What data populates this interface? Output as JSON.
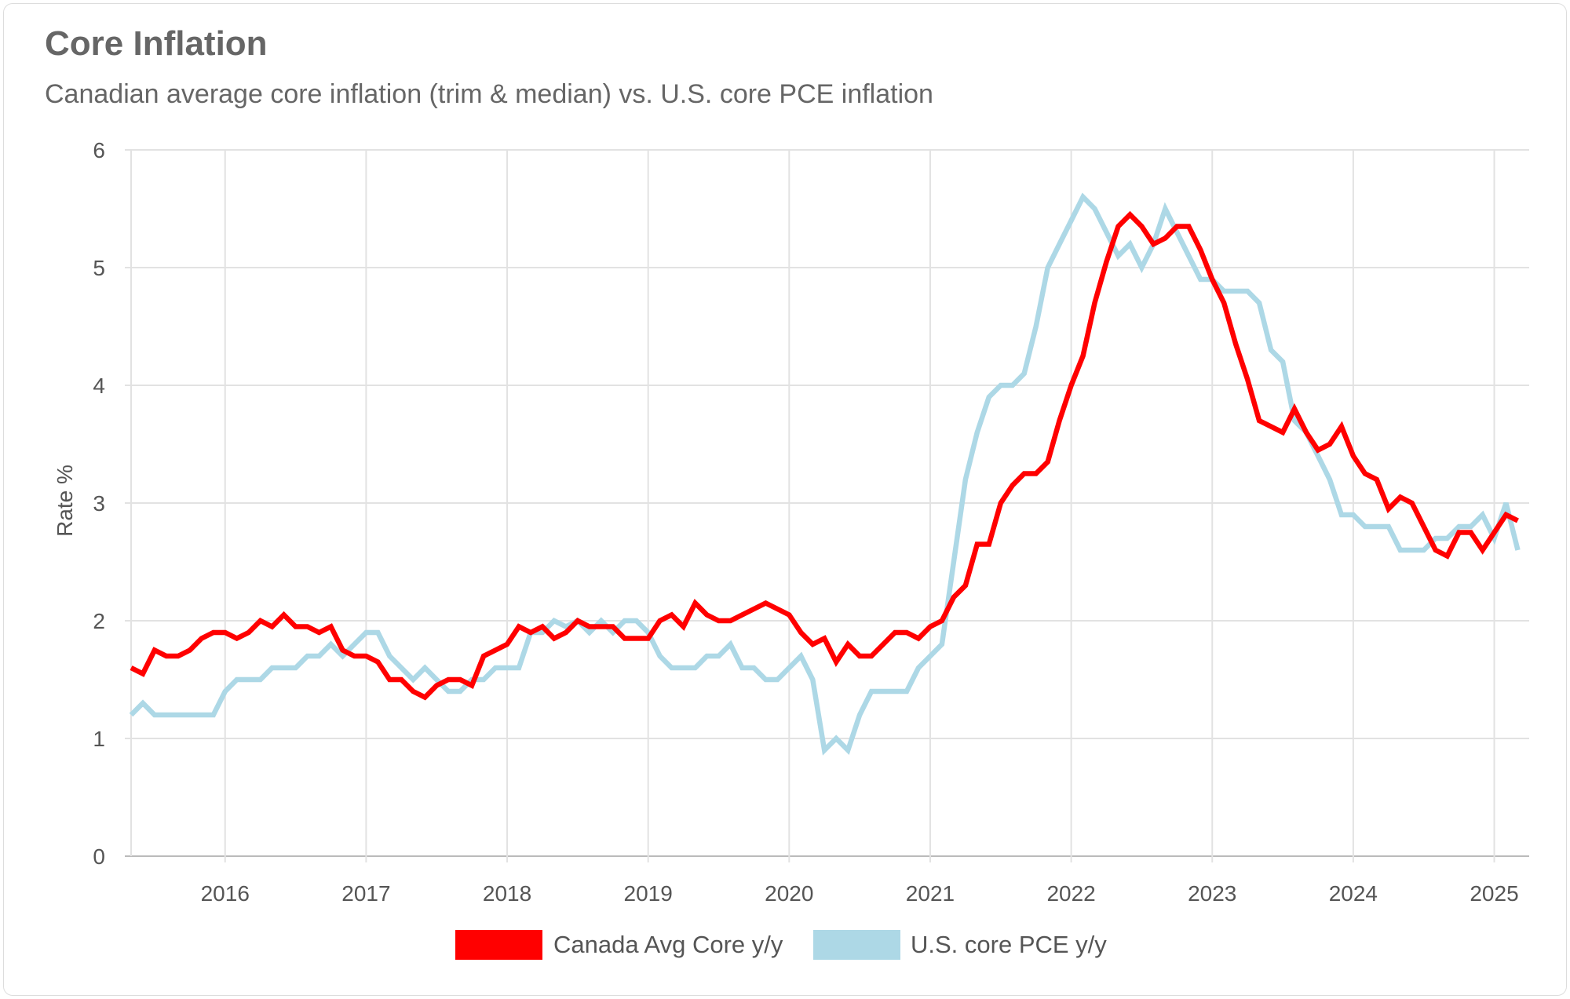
{
  "header": {
    "title": "Core Inflation",
    "subtitle": "Canadian average core inflation (trim & median) vs. U.S. core PCE inflation"
  },
  "chart_data": {
    "type": "line",
    "title": "Core Inflation",
    "subtitle": "Canadian average core inflation (trim & median) vs. U.S. core PCE inflation",
    "xlabel": "",
    "ylabel": "Rate %",
    "x_start": "2015-05",
    "x_end": "2025-03",
    "x_frequency": "monthly",
    "x_tick_labels": [
      "2016",
      "2017",
      "2018",
      "2019",
      "2020",
      "2021",
      "2022",
      "2023",
      "2024",
      "2025"
    ],
    "y_tick_labels": [
      "0",
      "1",
      "2",
      "3",
      "4",
      "5",
      "6"
    ],
    "ylim": [
      0,
      6
    ],
    "grid": true,
    "legend_position": "bottom",
    "series": [
      {
        "name": "Canada Avg Core y/y",
        "color": "#ff0000",
        "values": [
          1.6,
          1.55,
          1.75,
          1.7,
          1.7,
          1.75,
          1.85,
          1.9,
          1.9,
          1.85,
          1.9,
          2.0,
          1.95,
          2.05,
          1.95,
          1.95,
          1.9,
          1.95,
          1.75,
          1.7,
          1.7,
          1.65,
          1.5,
          1.5,
          1.4,
          1.35,
          1.45,
          1.5,
          1.5,
          1.45,
          1.7,
          1.75,
          1.8,
          1.95,
          1.9,
          1.95,
          1.85,
          1.9,
          2.0,
          1.95,
          1.95,
          1.95,
          1.85,
          1.85,
          1.85,
          2.0,
          2.05,
          1.95,
          2.15,
          2.05,
          2.0,
          2.0,
          2.05,
          2.1,
          2.15,
          2.1,
          2.05,
          1.9,
          1.8,
          1.85,
          1.65,
          1.8,
          1.7,
          1.7,
          1.8,
          1.9,
          1.9,
          1.85,
          1.95,
          2.0,
          2.2,
          2.3,
          2.65,
          2.65,
          3.0,
          3.15,
          3.25,
          3.25,
          3.35,
          3.7,
          4.0,
          4.25,
          4.7,
          5.05,
          5.35,
          5.45,
          5.35,
          5.2,
          5.25,
          5.35,
          5.35,
          5.15,
          4.9,
          4.7,
          4.35,
          4.05,
          3.7,
          3.65,
          3.6,
          3.8,
          3.6,
          3.45,
          3.5,
          3.65,
          3.4,
          3.25,
          3.2,
          2.95,
          3.05,
          3.0,
          2.8,
          2.6,
          2.55,
          2.75,
          2.75,
          2.6,
          2.75,
          2.9,
          2.85
        ]
      },
      {
        "name": "U.S. core PCE y/y",
        "color": "#add8e6",
        "values": [
          1.2,
          1.3,
          1.2,
          1.2,
          1.2,
          1.2,
          1.2,
          1.2,
          1.4,
          1.5,
          1.5,
          1.5,
          1.6,
          1.6,
          1.6,
          1.7,
          1.7,
          1.8,
          1.7,
          1.8,
          1.9,
          1.9,
          1.7,
          1.6,
          1.5,
          1.6,
          1.5,
          1.4,
          1.4,
          1.5,
          1.5,
          1.6,
          1.6,
          1.6,
          1.9,
          1.9,
          2.0,
          1.95,
          2.0,
          1.9,
          2.0,
          1.9,
          2.0,
          2.0,
          1.9,
          1.7,
          1.6,
          1.6,
          1.6,
          1.7,
          1.7,
          1.8,
          1.6,
          1.6,
          1.5,
          1.5,
          1.6,
          1.7,
          1.5,
          0.9,
          1.0,
          0.9,
          1.2,
          1.4,
          1.4,
          1.4,
          1.4,
          1.6,
          1.7,
          1.8,
          2.5,
          3.2,
          3.6,
          3.9,
          4.0,
          4.0,
          4.1,
          4.5,
          5.0,
          5.2,
          5.4,
          5.6,
          5.5,
          5.3,
          5.1,
          5.2,
          5.0,
          5.2,
          5.5,
          5.3,
          5.1,
          4.9,
          4.9,
          4.8,
          4.8,
          4.8,
          4.7,
          4.3,
          4.2,
          3.7,
          3.6,
          3.4,
          3.2,
          2.9,
          2.9,
          2.8,
          2.8,
          2.8,
          2.6,
          2.6,
          2.6,
          2.7,
          2.7,
          2.8,
          2.8,
          2.9,
          2.7,
          3.0,
          2.6
        ]
      }
    ]
  }
}
